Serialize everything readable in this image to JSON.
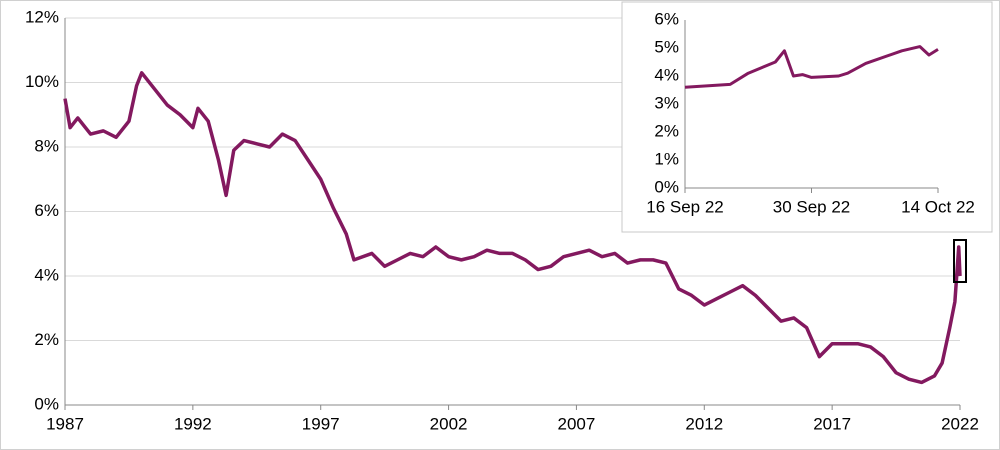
{
  "chart_data": [
    {
      "type": "line",
      "color": "#83195f",
      "x": [
        1987.0,
        1987.2,
        1987.5,
        1988.0,
        1988.5,
        1989.0,
        1989.5,
        1989.8,
        1990.0,
        1990.5,
        1991.0,
        1991.5,
        1992.0,
        1992.2,
        1992.6,
        1993.0,
        1993.3,
        1993.6,
        1994.0,
        1994.5,
        1995.0,
        1995.5,
        1996.0,
        1996.5,
        1997.0,
        1997.5,
        1998.0,
        1998.3,
        1999.0,
        1999.5,
        2000.0,
        2000.5,
        2001.0,
        2001.5,
        2002.0,
        2002.5,
        2003.0,
        2003.5,
        2004.0,
        2004.5,
        2005.0,
        2005.5,
        2006.0,
        2006.5,
        2007.0,
        2007.5,
        2008.0,
        2008.5,
        2009.0,
        2009.5,
        2010.0,
        2010.5,
        2011.0,
        2011.5,
        2012.0,
        2012.5,
        2013.0,
        2013.5,
        2014.0,
        2014.5,
        2015.0,
        2015.5,
        2016.0,
        2016.5,
        2017.0,
        2017.5,
        2018.0,
        2018.5,
        2019.0,
        2019.5,
        2020.0,
        2020.5,
        2021.0,
        2021.3,
        2021.6,
        2021.8,
        2021.95,
        2022.0
      ],
      "values": [
        9.5,
        8.6,
        8.9,
        8.4,
        8.5,
        8.3,
        8.8,
        9.9,
        10.3,
        9.8,
        9.3,
        9.0,
        8.6,
        9.2,
        8.8,
        7.6,
        6.5,
        7.9,
        8.2,
        8.1,
        8.0,
        8.4,
        8.2,
        7.6,
        7.0,
        6.1,
        5.3,
        4.5,
        4.7,
        4.3,
        4.5,
        4.7,
        4.6,
        4.9,
        4.6,
        4.5,
        4.6,
        4.8,
        4.7,
        4.7,
        4.5,
        4.2,
        4.3,
        4.6,
        4.7,
        4.8,
        4.6,
        4.7,
        4.4,
        4.5,
        4.5,
        4.4,
        3.6,
        3.4,
        3.1,
        3.3,
        3.5,
        3.7,
        3.4,
        3.0,
        2.6,
        2.7,
        2.4,
        1.5,
        1.9,
        1.9,
        1.9,
        1.8,
        1.5,
        1.0,
        0.8,
        0.7,
        0.9,
        1.3,
        2.4,
        3.2,
        4.9,
        4.0
      ],
      "xlim": [
        1987,
        2022
      ],
      "xticks": [
        1987,
        1992,
        1997,
        2002,
        2007,
        2012,
        2017,
        2022
      ],
      "ylim": [
        0,
        12
      ],
      "yticks": [
        {
          "value": 0,
          "label": "0%"
        },
        {
          "value": 2,
          "label": "2%"
        },
        {
          "value": 4,
          "label": "4%"
        },
        {
          "value": 6,
          "label": "6%"
        },
        {
          "value": 8,
          "label": "8%"
        },
        {
          "value": 10,
          "label": "10%"
        },
        {
          "value": 12,
          "label": "12%"
        }
      ],
      "grid": true
    },
    {
      "type": "line",
      "color": "#83195f",
      "x": [
        "2022-09-16",
        "2022-09-21",
        "2022-09-23",
        "2022-09-26",
        "2022-09-27",
        "2022-09-28",
        "2022-09-29",
        "2022-09-30",
        "2022-10-03",
        "2022-10-04",
        "2022-10-06",
        "2022-10-10",
        "2022-10-12",
        "2022-10-13",
        "2022-10-14"
      ],
      "values": [
        3.6,
        3.7,
        4.1,
        4.5,
        4.9,
        4.0,
        4.05,
        3.95,
        4.0,
        4.1,
        4.45,
        4.9,
        5.05,
        4.75,
        4.95
      ],
      "xlim": [
        "2022-09-16",
        "2022-10-14"
      ],
      "xticks": [
        {
          "value": "2022-09-16",
          "label": "16 Sep 22"
        },
        {
          "value": "2022-09-30",
          "label": "30 Sep 22"
        },
        {
          "value": "2022-10-14",
          "label": "14 Oct 22"
        }
      ],
      "ylim": [
        0,
        6
      ],
      "yticks": [
        {
          "value": 0,
          "label": "0%"
        },
        {
          "value": 1,
          "label": "1%"
        },
        {
          "value": 2,
          "label": "2%"
        },
        {
          "value": 3,
          "label": "3%"
        },
        {
          "value": 4,
          "label": "4%"
        },
        {
          "value": 5,
          "label": "5%"
        },
        {
          "value": 6,
          "label": "6%"
        }
      ],
      "grid": false
    }
  ]
}
